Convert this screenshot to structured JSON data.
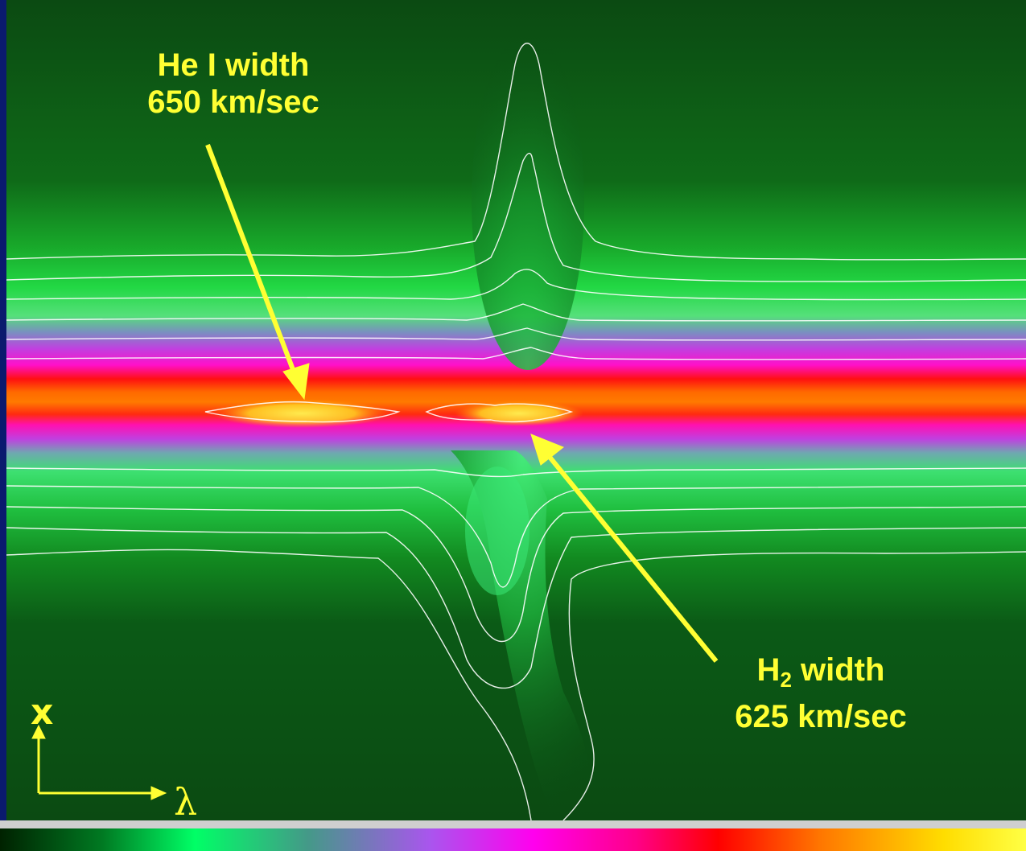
{
  "annotations": {
    "he_line": {
      "name": "He I width",
      "value": "650 km/sec"
    },
    "h2_line": {
      "name_main": "H",
      "name_sub": "2",
      "name_rest": " width",
      "value": "625 km/sec"
    }
  },
  "axes": {
    "vertical": "x",
    "horizontal": "λ"
  },
  "colors": {
    "background_border": "#0a1a6e",
    "image_background": "#0b4a12",
    "annotation": "#ffff33",
    "contour": "#ffffff",
    "colorbar": [
      "#003300",
      "#00aa33",
      "#00ff66",
      "#6699aa",
      "#cc33ff",
      "#ff00cc",
      "#ff0000",
      "#ff6600",
      "#ffcc00",
      "#ffff33"
    ]
  }
}
